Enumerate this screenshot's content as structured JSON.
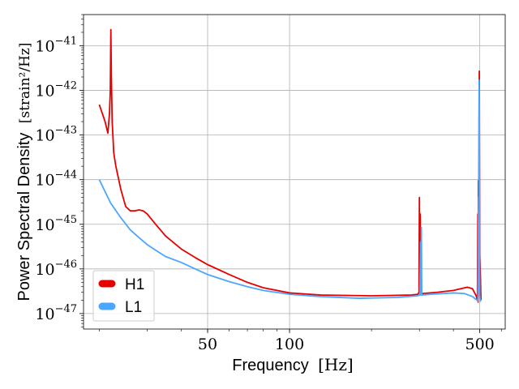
{
  "chart_data": {
    "type": "line",
    "title": "",
    "xlabel": {
      "text": "Frequency",
      "unit": "[Hz]"
    },
    "ylabel": {
      "text": "Power Spectral Density",
      "unit": "[strain²/Hz]"
    },
    "xscale": "log",
    "yscale": "log",
    "xlim": [
      17.5,
      620
    ],
    "ylim": [
      4.5e-48,
      5e-41
    ],
    "xticks_labeled": [
      {
        "value": 50,
        "label": "50"
      },
      {
        "value": 100,
        "label": "100"
      },
      {
        "value": 500,
        "label": "500"
      }
    ],
    "yticks": [
      {
        "exp": -41,
        "base": "10",
        "label": "−41"
      },
      {
        "exp": -42,
        "base": "10",
        "label": "−42"
      },
      {
        "exp": -43,
        "base": "10",
        "label": "−43"
      },
      {
        "exp": -44,
        "base": "10",
        "label": "−44"
      },
      {
        "exp": -45,
        "base": "10",
        "label": "−45"
      },
      {
        "exp": -46,
        "base": "10",
        "label": "−46"
      },
      {
        "exp": -47,
        "base": "10",
        "label": "−47"
      }
    ],
    "grid": true,
    "legend_position": "bottom-left",
    "series": [
      {
        "name": "H1",
        "color": "#e60000",
        "points": [
          [
            20,
            4.8e-43
          ],
          [
            21,
            2e-43
          ],
          [
            21.5,
            1.1e-43
          ],
          [
            21.8,
            3e-43
          ],
          [
            21.95,
            1e-42
          ],
          [
            22.05,
            2.3e-41
          ],
          [
            22.15,
            2e-42
          ],
          [
            22.3,
            2e-43
          ],
          [
            22.6,
            4e-44
          ],
          [
            23,
            2e-44
          ],
          [
            24,
            6e-45
          ],
          [
            25,
            2.5e-45
          ],
          [
            26,
            2e-45
          ],
          [
            27,
            2e-45
          ],
          [
            28,
            2.1e-45
          ],
          [
            29,
            2e-45
          ],
          [
            30,
            1.7e-45
          ],
          [
            32,
            1.05e-45
          ],
          [
            35,
            5.5e-46
          ],
          [
            40,
            2.8e-46
          ],
          [
            45,
            1.8e-46
          ],
          [
            50,
            1.25e-46
          ],
          [
            60,
            7.5e-47
          ],
          [
            70,
            5e-47
          ],
          [
            80,
            3.8e-47
          ],
          [
            100,
            2.9e-47
          ],
          [
            130,
            2.6e-47
          ],
          [
            200,
            2.5e-47
          ],
          [
            280,
            2.6e-47
          ],
          [
            296,
            2.7e-47
          ],
          [
            299,
            3e-47
          ],
          [
            300,
            4e-45
          ],
          [
            301,
            2.8e-47
          ],
          [
            302,
            1.7e-45
          ],
          [
            303,
            2.8e-47
          ],
          [
            305,
            2.8e-47
          ],
          [
            350,
            3e-47
          ],
          [
            400,
            3.3e-47
          ],
          [
            450,
            3.9e-47
          ],
          [
            470,
            3.6e-47
          ],
          [
            485,
            2.5e-47
          ],
          [
            490,
            2e-47
          ],
          [
            492,
            1.7e-45
          ],
          [
            493,
            1.8e-47
          ],
          [
            494,
            9.5e-45
          ],
          [
            495,
            1e-46
          ],
          [
            497,
            1.8e-43
          ],
          [
            498,
            2.7e-42
          ],
          [
            499,
            2.2e-44
          ],
          [
            500,
            2e-46
          ],
          [
            503,
            6e-47
          ],
          [
            505,
            2e-47
          ]
        ]
      },
      {
        "name": "L1",
        "color": "#4ba6ff",
        "points": [
          [
            20,
            1e-44
          ],
          [
            22,
            3e-45
          ],
          [
            24,
            1.4e-45
          ],
          [
            26,
            7.5e-46
          ],
          [
            28,
            5e-46
          ],
          [
            30,
            3.5e-46
          ],
          [
            32,
            2.7e-46
          ],
          [
            35,
            1.9e-46
          ],
          [
            40,
            1.4e-46
          ],
          [
            45,
            1e-46
          ],
          [
            50,
            7.5e-47
          ],
          [
            60,
            5.2e-47
          ],
          [
            70,
            4e-47
          ],
          [
            80,
            3.3e-47
          ],
          [
            100,
            2.7e-47
          ],
          [
            130,
            2.4e-47
          ],
          [
            180,
            2.2e-47
          ],
          [
            250,
            2.3e-47
          ],
          [
            295,
            2.5e-47
          ],
          [
            301,
            2.6e-47
          ],
          [
            303,
            4e-46
          ],
          [
            304,
            2.6e-47
          ],
          [
            305,
            8.5e-46
          ],
          [
            306,
            2.6e-47
          ],
          [
            330,
            2.7e-47
          ],
          [
            400,
            2.9e-47
          ],
          [
            440,
            2.8e-47
          ],
          [
            470,
            2.4e-47
          ],
          [
            488,
            2e-47
          ],
          [
            492,
            1.9e-47
          ],
          [
            495,
            4e-45
          ],
          [
            496,
            3e-47
          ],
          [
            497,
            1.7e-42
          ],
          [
            498,
            4e-43
          ],
          [
            499,
            1e-46
          ],
          [
            500,
            2.5e-47
          ],
          [
            503,
            1.9e-47
          ],
          [
            505,
            1.9e-47
          ]
        ]
      }
    ]
  }
}
